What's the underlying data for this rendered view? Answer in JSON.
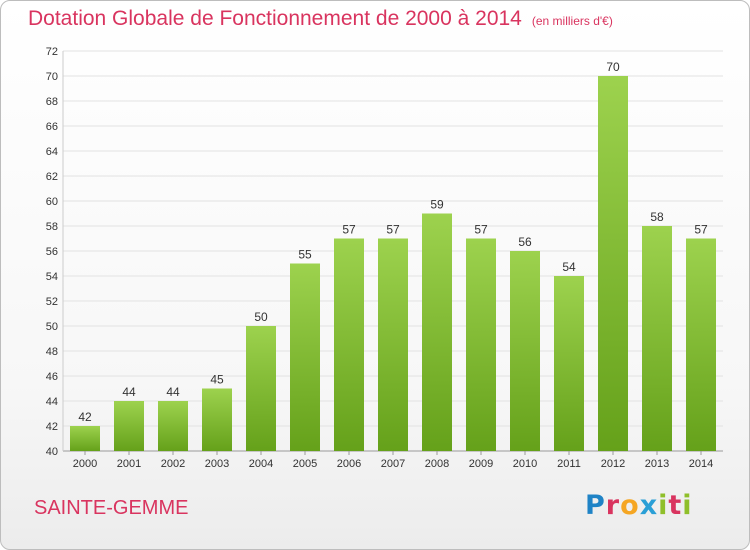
{
  "title": "Dotation Globale de Fonctionnement de 2000 à 2014",
  "unit_note": "(en milliers d'€)",
  "commune": "SAINTE-GEMME",
  "logo_text": "Proxiti",
  "colors": {
    "bar_top": "#9dd24e",
    "bar_bottom": "#65a11a",
    "title": "#d9345f",
    "grid": "#e2e2e2"
  },
  "chart_data": {
    "type": "bar",
    "title": "Dotation Globale de Fonctionnement de 2000 à 2014",
    "subtitle": "(en milliers d'€)",
    "categories": [
      "2000",
      "2001",
      "2002",
      "2003",
      "2004",
      "2005",
      "2006",
      "2007",
      "2008",
      "2009",
      "2010",
      "2011",
      "2012",
      "2013",
      "2014"
    ],
    "values": [
      42,
      44,
      44,
      45,
      50,
      55,
      57,
      57,
      59,
      57,
      56,
      54,
      70,
      58,
      57
    ],
    "xlabel": "",
    "ylabel": "",
    "ylim": [
      40,
      72
    ],
    "yticks": [
      40,
      42,
      44,
      46,
      48,
      50,
      52,
      54,
      56,
      58,
      60,
      62,
      64,
      66,
      68,
      70,
      72
    ],
    "grid": true,
    "legend": "none"
  }
}
